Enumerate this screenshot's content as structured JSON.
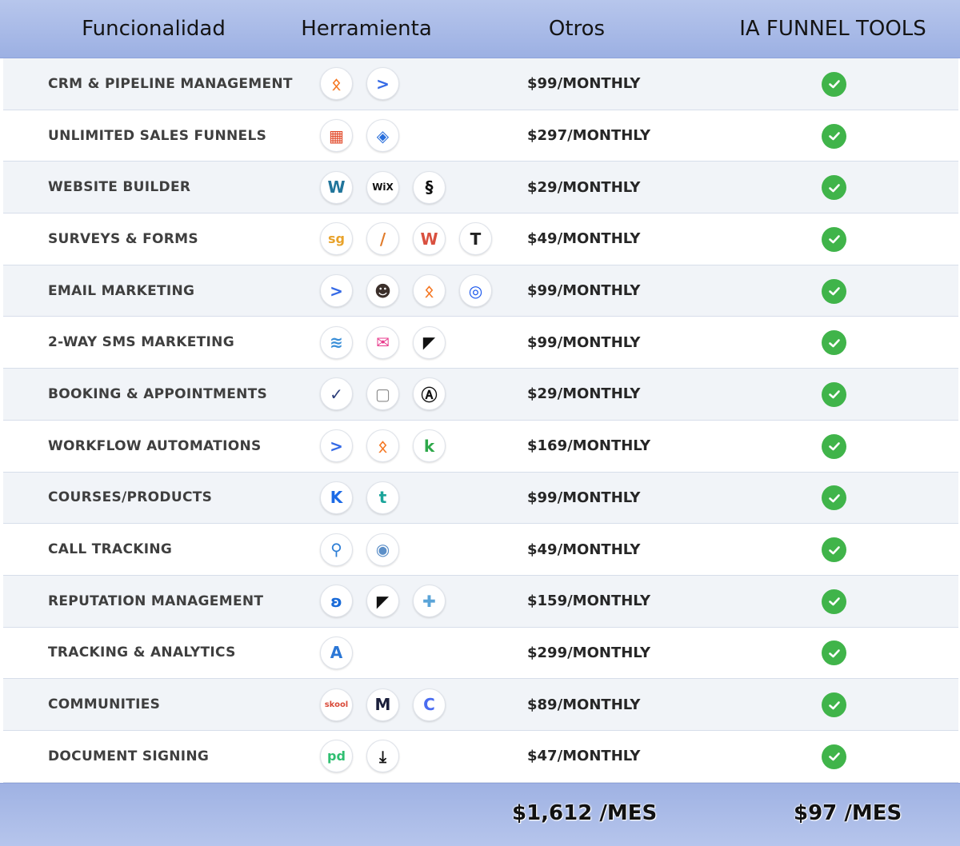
{
  "header": {
    "col_feature": "Funcionalidad",
    "col_tool": "Herramienta",
    "col_other": "Otros",
    "col_ia": "IA FUNNEL TOOLS"
  },
  "rows": [
    {
      "feature": "CRM & PIPELINE MANAGEMENT",
      "price": "$99/MONTHLY",
      "included": true,
      "tools": [
        {
          "icon": "hubspot-icon",
          "glyph": "ᛟ",
          "color": "#f57722"
        },
        {
          "icon": "activecampaign-icon",
          "glyph": ">",
          "color": "#356ae6"
        }
      ]
    },
    {
      "feature": "UNLIMITED SALES FUNNELS",
      "price": "$297/MONTHLY",
      "included": true,
      "tools": [
        {
          "icon": "clickfunnels-icon",
          "glyph": "▦",
          "color": "#e24a2a"
        },
        {
          "icon": "leadpages-icon",
          "glyph": "◈",
          "color": "#2a6fdb"
        }
      ]
    },
    {
      "feature": "WEBSITE BUILDER",
      "price": "$29/MONTHLY",
      "included": true,
      "tools": [
        {
          "icon": "wordpress-icon",
          "glyph": "W",
          "color": "#21759b"
        },
        {
          "icon": "wix-icon",
          "glyph": "WiX",
          "color": "#111111"
        },
        {
          "icon": "squarespace-icon",
          "glyph": "§",
          "color": "#111111"
        }
      ]
    },
    {
      "feature": "SURVEYS & FORMS",
      "price": "$49/MONTHLY",
      "included": true,
      "tools": [
        {
          "icon": "surveygizmo-icon",
          "glyph": "sg",
          "color": "#e8a22a"
        },
        {
          "icon": "formstack-icon",
          "glyph": "/",
          "color": "#e07b2a"
        },
        {
          "icon": "wufoo-icon",
          "glyph": "W",
          "color": "#d9503f"
        },
        {
          "icon": "typeform-icon",
          "glyph": "T",
          "color": "#222222"
        }
      ]
    },
    {
      "feature": "EMAIL MARKETING",
      "price": "$99/MONTHLY",
      "included": true,
      "tools": [
        {
          "icon": "activecampaign-icon",
          "glyph": ">",
          "color": "#356ae6"
        },
        {
          "icon": "mailchimp-icon",
          "glyph": "☻",
          "color": "#3b2f2a"
        },
        {
          "icon": "hubspot-icon",
          "glyph": "ᛟ",
          "color": "#f57722"
        },
        {
          "icon": "constant-contact-icon",
          "glyph": "◎",
          "color": "#1856ed"
        }
      ]
    },
    {
      "feature": "2-WAY SMS MARKETING",
      "price": "$99/MONTHLY",
      "included": true,
      "tools": [
        {
          "icon": "sms-layers-icon",
          "glyph": "≋",
          "color": "#3a8fd8"
        },
        {
          "icon": "envelope-icon",
          "glyph": "✉",
          "color": "#e83a8c"
        },
        {
          "icon": "podium-icon",
          "glyph": "◤",
          "color": "#111111"
        }
      ]
    },
    {
      "feature": "BOOKING & APPOINTMENTS",
      "price": "$29/MONTHLY",
      "included": true,
      "tools": [
        {
          "icon": "check-circle-tool-icon",
          "glyph": "✓",
          "color": "#2c3e7a"
        },
        {
          "icon": "calendar-icon",
          "glyph": "▢",
          "color": "#8a8a8a"
        },
        {
          "icon": "acuity-icon",
          "glyph": "Ⓐ",
          "color": "#111111"
        }
      ]
    },
    {
      "feature": "WORKFLOW AUTOMATIONS",
      "price": "$169/MONTHLY",
      "included": true,
      "tools": [
        {
          "icon": "activecampaign-icon",
          "glyph": ">",
          "color": "#356ae6"
        },
        {
          "icon": "hubspot-icon",
          "glyph": "ᛟ",
          "color": "#f57722"
        },
        {
          "icon": "keap-icon",
          "glyph": "k",
          "color": "#2ea84a"
        }
      ]
    },
    {
      "feature": "COURSES/PRODUCTS",
      "price": "$99/MONTHLY",
      "included": true,
      "tools": [
        {
          "icon": "kajabi-icon",
          "glyph": "K",
          "color": "#1c6ae6"
        },
        {
          "icon": "teachable-icon",
          "glyph": "t",
          "color": "#1aa49a"
        }
      ]
    },
    {
      "feature": "CALL TRACKING",
      "price": "$49/MONTHLY",
      "included": true,
      "tools": [
        {
          "icon": "callrail-icon",
          "glyph": "⚲",
          "color": "#2f7fd6"
        },
        {
          "icon": "callfire-icon",
          "glyph": "◉",
          "color": "#5c8fc8"
        }
      ]
    },
    {
      "feature": "REPUTATION MANAGEMENT",
      "price": "$159/MONTHLY",
      "included": true,
      "tools": [
        {
          "icon": "birdeye-icon",
          "glyph": "ʚ",
          "color": "#1a6bd8"
        },
        {
          "icon": "podium-icon",
          "glyph": "◤",
          "color": "#111111"
        },
        {
          "icon": "puzzle-icon",
          "glyph": "✚",
          "color": "#5aa4d8"
        }
      ]
    },
    {
      "feature": "TRACKING & ANALYTICS",
      "price": "$299/MONTHLY",
      "included": true,
      "tools": [
        {
          "icon": "analytics-icon",
          "glyph": "A",
          "color": "#2b77d6"
        }
      ]
    },
    {
      "feature": "COMMUNITIES",
      "price": "$89/MONTHLY",
      "included": true,
      "tools": [
        {
          "icon": "skool-icon",
          "glyph": "skool",
          "color": "#d94b3a"
        },
        {
          "icon": "mighty-networks-icon",
          "glyph": "M",
          "color": "#1b1f3b"
        },
        {
          "icon": "circle-community-icon",
          "glyph": "C",
          "color": "#4a6cf0"
        }
      ]
    },
    {
      "feature": "DOCUMENT SIGNING",
      "price": "$47/MONTHLY",
      "included": true,
      "tools": [
        {
          "icon": "pandadoc-icon",
          "glyph": "pd",
          "color": "#2fbf71"
        },
        {
          "icon": "signnow-icon",
          "glyph": "⤓",
          "color": "#111111"
        }
      ]
    }
  ],
  "footer": {
    "total_other": "$1,612 /MES",
    "total_ia": "$97 /MES"
  },
  "colors": {
    "header_bg": "#a9bbe8",
    "row_alt": "#f1f4f8",
    "check_green": "#40b44a"
  }
}
